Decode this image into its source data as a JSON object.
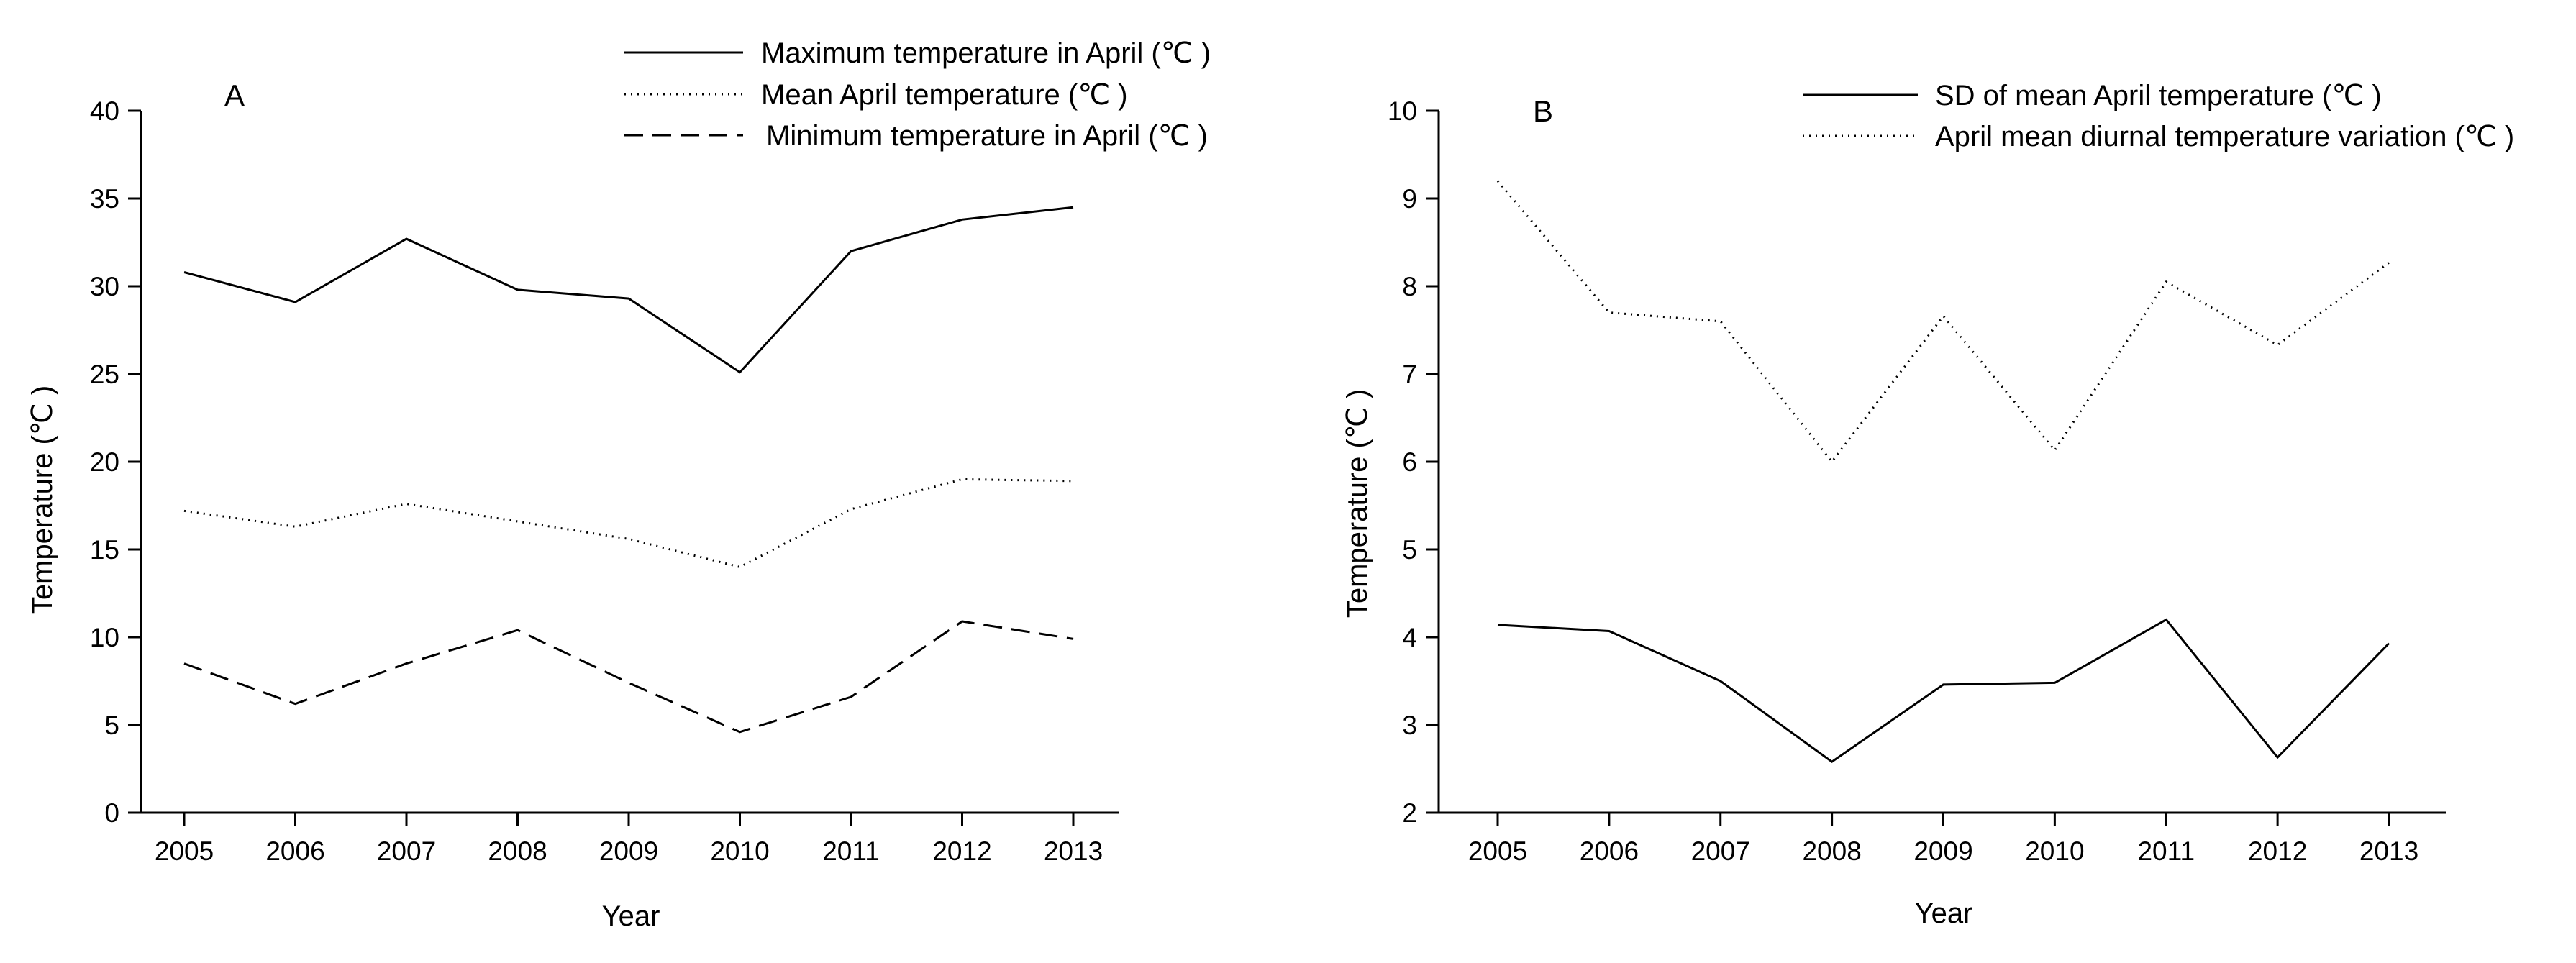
{
  "chart_data": [
    {
      "type": "line",
      "panel_label": "A",
      "title": "",
      "xlabel": "Year",
      "ylabel": "Temperature (℃ )",
      "ylim": [
        0,
        40
      ],
      "yticks": [
        0,
        5,
        10,
        15,
        20,
        25,
        30,
        35,
        40
      ],
      "categories": [
        "2005",
        "2006",
        "2007",
        "2008",
        "2009",
        "2010",
        "2011",
        "2012",
        "2013"
      ],
      "grid": false,
      "legend": "top-right",
      "series": [
        {
          "name": "Maximum temperature in April (℃ )",
          "style": "solid",
          "values": [
            30.8,
            29.1,
            32.7,
            29.8,
            29.3,
            25.1,
            32.0,
            33.8,
            34.5
          ]
        },
        {
          "name": "Mean April temperature (℃ )",
          "style": "dotted",
          "values": [
            17.2,
            16.3,
            17.6,
            16.6,
            15.6,
            14.0,
            17.3,
            19.0,
            18.9
          ]
        },
        {
          "name": "Minimum temperature in April (℃ )",
          "style": "dashed",
          "values": [
            8.5,
            6.2,
            8.5,
            10.4,
            7.4,
            4.6,
            6.6,
            10.9,
            9.9
          ]
        }
      ]
    },
    {
      "type": "line",
      "panel_label": "B",
      "title": "",
      "xlabel": "Year",
      "ylabel": "Temperature (℃ )",
      "ylim": [
        2,
        10
      ],
      "yticks": [
        2,
        3,
        4,
        5,
        6,
        7,
        8,
        9,
        10
      ],
      "categories": [
        "2005",
        "2006",
        "2007",
        "2008",
        "2009",
        "2010",
        "2011",
        "2012",
        "2013"
      ],
      "grid": false,
      "legend": "top-right",
      "series": [
        {
          "name": "SD of mean April temperature (℃ )",
          "style": "solid",
          "values": [
            4.14,
            4.07,
            3.5,
            2.58,
            3.46,
            3.48,
            4.2,
            2.63,
            3.93
          ]
        },
        {
          "name": "April mean diurnal temperature variation (℃ )",
          "style": "dotted",
          "values": [
            9.2,
            7.7,
            7.6,
            6.0,
            7.66,
            6.13,
            8.05,
            7.33,
            8.27
          ]
        }
      ]
    }
  ]
}
